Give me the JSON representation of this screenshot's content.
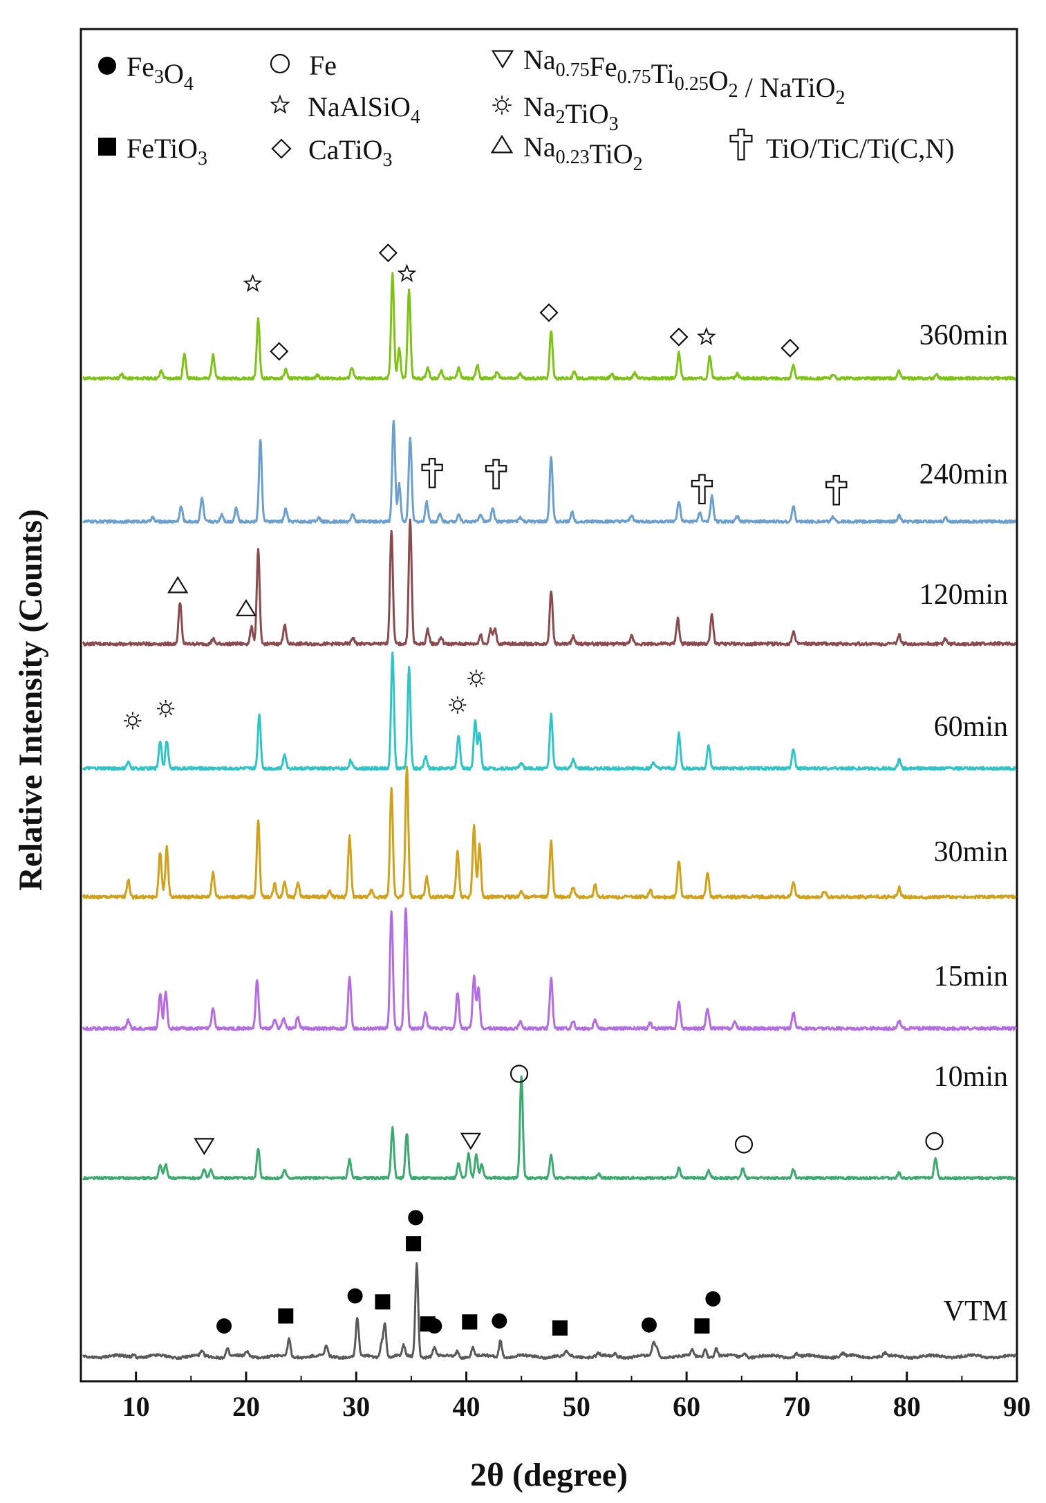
{
  "chart_data": {
    "type": "line",
    "title": "",
    "xlabel": "2θ (degree)",
    "ylabel": "Relative Intensity (Counts)",
    "xlim": [
      5,
      90
    ],
    "xticks": [
      10,
      20,
      30,
      40,
      50,
      60,
      70,
      80,
      90
    ],
    "y_ticks": "none",
    "grid": false,
    "legend_position": "top",
    "legend": [
      {
        "marker": "filled-circle",
        "parts": [
          [
            "Fe",
            ""
          ],
          [
            "3",
            "sub"
          ],
          [
            "O",
            ""
          ],
          [
            "4",
            "sub"
          ]
        ]
      },
      {
        "marker": "open-circle",
        "parts": [
          [
            "Fe",
            ""
          ]
        ]
      },
      {
        "marker": "down-triangle",
        "parts": [
          [
            "Na",
            ""
          ],
          [
            "0.75",
            "sub"
          ],
          [
            "Fe",
            ""
          ],
          [
            "0.75",
            "sub"
          ],
          [
            "Ti",
            ""
          ],
          [
            "0.25",
            "sub"
          ],
          [
            "O",
            ""
          ],
          [
            "2",
            "sub"
          ],
          [
            " / NaTiO",
            ""
          ],
          [
            "2",
            "sub"
          ]
        ]
      },
      {
        "marker": "star",
        "parts": [
          [
            "NaAlSiO",
            ""
          ],
          [
            "4",
            "sub"
          ]
        ]
      },
      {
        "marker": "sun",
        "parts": [
          [
            "Na",
            ""
          ],
          [
            "2",
            "sub"
          ],
          [
            "TiO",
            ""
          ],
          [
            "3",
            "sub"
          ]
        ]
      },
      {
        "marker": "filled-square",
        "parts": [
          [
            "FeTiO",
            ""
          ],
          [
            "3",
            "sub"
          ]
        ]
      },
      {
        "marker": "diamond",
        "parts": [
          [
            "CaTiO",
            ""
          ],
          [
            "3",
            "sub"
          ]
        ]
      },
      {
        "marker": "up-triangle",
        "parts": [
          [
            "Na",
            ""
          ],
          [
            "0.23",
            "sub"
          ],
          [
            "TiO",
            ""
          ],
          [
            "2",
            "sub"
          ]
        ]
      },
      {
        "marker": "dagger",
        "parts": [
          [
            "TiO/TiC/Ti(C,N)",
            ""
          ]
        ]
      }
    ],
    "series": [
      {
        "name": "360min",
        "color": "#7dc314",
        "peaks": [
          [
            8.7,
            0.04
          ],
          [
            12.3,
            0.07
          ],
          [
            14.4,
            0.22
          ],
          [
            17.0,
            0.22
          ],
          [
            21.1,
            0.54
          ],
          [
            23.6,
            0.08
          ],
          [
            26.5,
            0.03
          ],
          [
            29.6,
            0.1
          ],
          [
            33.3,
            0.95
          ],
          [
            33.9,
            0.27
          ],
          [
            34.8,
            0.8
          ],
          [
            36.5,
            0.1
          ],
          [
            37.7,
            0.07
          ],
          [
            39.3,
            0.1
          ],
          [
            41.0,
            0.12
          ],
          [
            42.8,
            0.06
          ],
          [
            44.9,
            0.05
          ],
          [
            47.7,
            0.43
          ],
          [
            49.8,
            0.06
          ],
          [
            53.2,
            0.04
          ],
          [
            55.3,
            0.05
          ],
          [
            59.3,
            0.23
          ],
          [
            62.1,
            0.2
          ],
          [
            64.6,
            0.04
          ],
          [
            69.7,
            0.12
          ],
          [
            73.3,
            0.04
          ],
          [
            79.3,
            0.07
          ],
          [
            82.7,
            0.04
          ]
        ]
      },
      {
        "name": "240min",
        "color": "#6a9fd0",
        "peaks": [
          [
            11.5,
            0.04
          ],
          [
            14.1,
            0.14
          ],
          [
            16.0,
            0.22
          ],
          [
            17.8,
            0.07
          ],
          [
            19.1,
            0.13
          ],
          [
            21.3,
            0.77
          ],
          [
            23.6,
            0.12
          ],
          [
            26.6,
            0.04
          ],
          [
            29.7,
            0.07
          ],
          [
            33.4,
            0.95
          ],
          [
            33.9,
            0.35
          ],
          [
            34.9,
            0.79
          ],
          [
            36.4,
            0.18
          ],
          [
            37.6,
            0.07
          ],
          [
            39.3,
            0.07
          ],
          [
            41.3,
            0.07
          ],
          [
            42.4,
            0.13
          ],
          [
            44.9,
            0.04
          ],
          [
            47.7,
            0.61
          ],
          [
            49.6,
            0.09
          ],
          [
            55.0,
            0.06
          ],
          [
            59.3,
            0.19
          ],
          [
            61.2,
            0.08
          ],
          [
            62.3,
            0.24
          ],
          [
            64.6,
            0.05
          ],
          [
            69.7,
            0.14
          ],
          [
            73.3,
            0.05
          ],
          [
            79.3,
            0.06
          ],
          [
            83.5,
            0.04
          ]
        ]
      },
      {
        "name": "120min",
        "color": "#8b4a4d",
        "peaks": [
          [
            14.0,
            0.33
          ],
          [
            17.0,
            0.04
          ],
          [
            20.5,
            0.13
          ],
          [
            21.1,
            0.73
          ],
          [
            23.5,
            0.15
          ],
          [
            29.7,
            0.05
          ],
          [
            33.2,
            0.89
          ],
          [
            34.9,
            0.97
          ],
          [
            36.5,
            0.11
          ],
          [
            37.7,
            0.05
          ],
          [
            41.3,
            0.07
          ],
          [
            42.2,
            0.11
          ],
          [
            42.6,
            0.12
          ],
          [
            47.7,
            0.42
          ],
          [
            49.7,
            0.06
          ],
          [
            55.0,
            0.06
          ],
          [
            59.2,
            0.2
          ],
          [
            62.3,
            0.23
          ],
          [
            69.7,
            0.1
          ],
          [
            79.3,
            0.07
          ],
          [
            83.5,
            0.04
          ]
        ]
      },
      {
        "name": "60min",
        "color": "#2ec5c8",
        "peaks": [
          [
            9.3,
            0.05
          ],
          [
            12.2,
            0.23
          ],
          [
            12.8,
            0.23
          ],
          [
            21.2,
            0.45
          ],
          [
            23.5,
            0.12
          ],
          [
            29.5,
            0.07
          ],
          [
            33.3,
            0.95
          ],
          [
            34.8,
            0.83
          ],
          [
            36.3,
            0.1
          ],
          [
            39.3,
            0.28
          ],
          [
            40.8,
            0.4
          ],
          [
            41.2,
            0.29
          ],
          [
            45.0,
            0.05
          ],
          [
            47.7,
            0.44
          ],
          [
            49.7,
            0.07
          ],
          [
            57.0,
            0.05
          ],
          [
            59.3,
            0.29
          ],
          [
            62.0,
            0.19
          ],
          [
            69.7,
            0.16
          ],
          [
            79.3,
            0.07
          ]
        ]
      },
      {
        "name": "30min",
        "color": "#d1a11a",
        "peaks": [
          [
            9.3,
            0.13
          ],
          [
            12.2,
            0.34
          ],
          [
            12.8,
            0.38
          ],
          [
            17.0,
            0.19
          ],
          [
            21.1,
            0.59
          ],
          [
            22.6,
            0.1
          ],
          [
            23.5,
            0.12
          ],
          [
            24.7,
            0.11
          ],
          [
            27.6,
            0.05
          ],
          [
            29.4,
            0.46
          ],
          [
            31.4,
            0.05
          ],
          [
            33.2,
            0.83
          ],
          [
            34.6,
            1.0
          ],
          [
            36.4,
            0.15
          ],
          [
            39.2,
            0.34
          ],
          [
            40.7,
            0.54
          ],
          [
            41.2,
            0.4
          ],
          [
            45.0,
            0.05
          ],
          [
            47.7,
            0.42
          ],
          [
            49.7,
            0.08
          ],
          [
            51.7,
            0.09
          ],
          [
            56.7,
            0.06
          ],
          [
            59.3,
            0.28
          ],
          [
            61.9,
            0.19
          ],
          [
            69.7,
            0.12
          ],
          [
            72.5,
            0.05
          ],
          [
            79.3,
            0.07
          ]
        ]
      },
      {
        "name": "15min",
        "color": "#b46be5",
        "peaks": [
          [
            9.3,
            0.07
          ],
          [
            12.2,
            0.28
          ],
          [
            12.7,
            0.3
          ],
          [
            17.0,
            0.17
          ],
          [
            21.0,
            0.39
          ],
          [
            22.6,
            0.08
          ],
          [
            23.4,
            0.09
          ],
          [
            24.7,
            0.09
          ],
          [
            29.4,
            0.42
          ],
          [
            33.2,
            0.95
          ],
          [
            34.5,
            0.97
          ],
          [
            36.3,
            0.13
          ],
          [
            39.2,
            0.29
          ],
          [
            40.7,
            0.42
          ],
          [
            41.1,
            0.32
          ],
          [
            44.9,
            0.06
          ],
          [
            47.7,
            0.4
          ],
          [
            49.7,
            0.06
          ],
          [
            51.7,
            0.08
          ],
          [
            56.7,
            0.05
          ],
          [
            59.3,
            0.22
          ],
          [
            61.9,
            0.16
          ],
          [
            64.4,
            0.05
          ],
          [
            69.7,
            0.13
          ],
          [
            79.3,
            0.06
          ]
        ]
      },
      {
        "name": "10min",
        "color": "#3aaa6e",
        "peaks": [
          [
            12.2,
            0.13
          ],
          [
            12.7,
            0.13
          ],
          [
            16.2,
            0.08
          ],
          [
            16.8,
            0.08
          ],
          [
            21.1,
            0.28
          ],
          [
            23.5,
            0.08
          ],
          [
            29.4,
            0.18
          ],
          [
            33.3,
            0.48
          ],
          [
            34.6,
            0.43
          ],
          [
            39.3,
            0.14
          ],
          [
            40.2,
            0.24
          ],
          [
            40.9,
            0.23
          ],
          [
            41.4,
            0.14
          ],
          [
            45.0,
            0.98
          ],
          [
            47.7,
            0.22
          ],
          [
            52.0,
            0.04
          ],
          [
            59.3,
            0.1
          ],
          [
            62.0,
            0.07
          ],
          [
            65.1,
            0.1
          ],
          [
            69.7,
            0.08
          ],
          [
            79.3,
            0.05
          ],
          [
            82.6,
            0.2
          ]
        ]
      },
      {
        "name": "VTM",
        "color": "#595959",
        "peaks": [
          [
            9.8,
            0.03
          ],
          [
            16.0,
            0.04
          ],
          [
            18.3,
            0.08
          ],
          [
            20.1,
            0.05
          ],
          [
            23.9,
            0.17
          ],
          [
            27.3,
            0.1
          ],
          [
            30.1,
            0.38
          ],
          [
            32.3,
            0.13
          ],
          [
            32.6,
            0.33
          ],
          [
            34.3,
            0.1
          ],
          [
            35.5,
            0.94
          ],
          [
            37.1,
            0.09
          ],
          [
            39.2,
            0.06
          ],
          [
            40.6,
            0.09
          ],
          [
            43.1,
            0.17
          ],
          [
            49.1,
            0.04
          ],
          [
            52.0,
            0.03
          ],
          [
            53.5,
            0.03
          ],
          [
            57.0,
            0.13
          ],
          [
            57.3,
            0.09
          ],
          [
            60.5,
            0.06
          ],
          [
            61.7,
            0.08
          ],
          [
            62.7,
            0.08
          ],
          [
            65.3,
            0.04
          ],
          [
            70.0,
            0.03
          ],
          [
            74.2,
            0.03
          ],
          [
            78.0,
            0.03
          ]
        ]
      }
    ],
    "annotations": [
      {
        "series": "360min",
        "marker": "star",
        "x": 20.6,
        "h": 0.86
      },
      {
        "series": "360min",
        "marker": "diamond",
        "x": 23.0,
        "h": 0.25
      },
      {
        "series": "360min",
        "marker": "diamond",
        "x": 32.9,
        "h": 1.14
      },
      {
        "series": "360min",
        "marker": "star",
        "x": 34.6,
        "h": 0.95
      },
      {
        "series": "360min",
        "marker": "diamond",
        "x": 47.5,
        "h": 0.6
      },
      {
        "series": "360min",
        "marker": "diamond",
        "x": 59.3,
        "h": 0.38
      },
      {
        "series": "360min",
        "marker": "star",
        "x": 61.8,
        "h": 0.38
      },
      {
        "series": "360min",
        "marker": "diamond",
        "x": 69.4,
        "h": 0.28
      },
      {
        "series": "240min",
        "marker": "dagger",
        "x": 36.9,
        "h": 0.47
      },
      {
        "series": "240min",
        "marker": "dagger",
        "x": 42.7,
        "h": 0.46
      },
      {
        "series": "240min",
        "marker": "dagger",
        "x": 61.4,
        "h": 0.32
      },
      {
        "series": "240min",
        "marker": "dagger",
        "x": 73.6,
        "h": 0.31
      },
      {
        "series": "120min",
        "marker": "up-triangle",
        "x": 13.8,
        "h": 0.46
      },
      {
        "series": "120min",
        "marker": "up-triangle",
        "x": 20.0,
        "h": 0.28
      },
      {
        "series": "60min",
        "marker": "sun",
        "x": 9.7,
        "h": 0.4
      },
      {
        "series": "60min",
        "marker": "sun",
        "x": 12.7,
        "h": 0.5
      },
      {
        "series": "60min",
        "marker": "sun",
        "x": 39.2,
        "h": 0.53
      },
      {
        "series": "60min",
        "marker": "sun",
        "x": 40.9,
        "h": 0.75
      },
      {
        "series": "10min",
        "marker": "down-triangle",
        "x": 16.2,
        "h": 0.32
      },
      {
        "series": "10min",
        "marker": "down-triangle",
        "x": 40.4,
        "h": 0.37
      },
      {
        "series": "10min",
        "marker": "open-circle",
        "x": 44.8,
        "h": 1.01
      },
      {
        "series": "10min",
        "marker": "open-circle",
        "x": 65.2,
        "h": 0.33
      },
      {
        "series": "10min",
        "marker": "open-circle",
        "x": 82.5,
        "h": 0.36
      },
      {
        "series": "VTM",
        "marker": "filled-circle",
        "x": 35.4,
        "h": 1.39
      },
      {
        "series": "VTM",
        "marker": "filled-square",
        "x": 35.2,
        "h": 1.13
      },
      {
        "series": "VTM",
        "marker": "filled-circle",
        "x": 29.9,
        "h": 0.61
      },
      {
        "series": "VTM",
        "marker": "filled-square",
        "x": 32.4,
        "h": 0.55
      },
      {
        "series": "VTM",
        "marker": "filled-square",
        "x": 23.6,
        "h": 0.41
      },
      {
        "series": "VTM",
        "marker": "filled-circle",
        "x": 18.0,
        "h": 0.31
      },
      {
        "series": "VTM",
        "marker": "filled-square",
        "x": 36.5,
        "h": 0.33
      },
      {
        "series": "VTM",
        "marker": "filled-circle",
        "x": 37.1,
        "h": 0.31
      },
      {
        "series": "VTM",
        "marker": "filled-square",
        "x": 40.3,
        "h": 0.35
      },
      {
        "series": "VTM",
        "marker": "filled-circle",
        "x": 43.0,
        "h": 0.36
      },
      {
        "series": "VTM",
        "marker": "filled-square",
        "x": 48.5,
        "h": 0.29
      },
      {
        "series": "VTM",
        "marker": "filled-circle",
        "x": 56.6,
        "h": 0.32
      },
      {
        "series": "VTM",
        "marker": "filled-square",
        "x": 61.4,
        "h": 0.31
      },
      {
        "series": "VTM",
        "marker": "filled-circle",
        "x": 62.4,
        "h": 0.58
      }
    ]
  }
}
